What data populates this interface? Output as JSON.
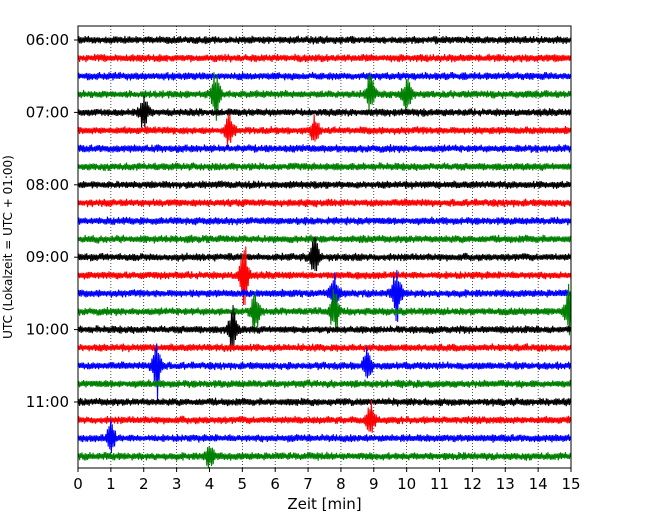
{
  "chart_data": {
    "type": "line",
    "title": "",
    "xlabel": "Zeit  [min]",
    "ylabel": "UTC (Lokalzeit = UTC + 01:00)",
    "xlim": [
      0,
      15
    ],
    "x_ticks": [
      "0",
      "1",
      "2",
      "3",
      "4",
      "5",
      "6",
      "7",
      "8",
      "9",
      "10",
      "11",
      "12",
      "13",
      "14",
      "15"
    ],
    "y_tick_labels": [
      "06:00",
      "07:00",
      "08:00",
      "09:00",
      "10:00",
      "11:00"
    ],
    "trace_count": 24,
    "trace_interval_minutes": 15,
    "first_trace_time": "06:00",
    "trace_colors": [
      "#000000",
      "#ff0000",
      "#0000ff",
      "#008000"
    ],
    "grid": {
      "x": true,
      "y": false,
      "style": "dotted"
    },
    "legend": "none",
    "events": [
      {
        "trace": 3,
        "minute": 4.2,
        "amplitude": 2.0
      },
      {
        "trace": 3,
        "minute": 8.9,
        "amplitude": 1.6
      },
      {
        "trace": 3,
        "minute": 10.0,
        "amplitude": 1.4
      },
      {
        "trace": 4,
        "minute": 2.0,
        "amplitude": 1.4
      },
      {
        "trace": 5,
        "minute": 4.6,
        "amplitude": 1.5
      },
      {
        "trace": 5,
        "minute": 7.2,
        "amplitude": 1.2
      },
      {
        "trace": 12,
        "minute": 7.2,
        "amplitude": 1.6
      },
      {
        "trace": 13,
        "minute": 5.05,
        "amplitude": 3.0
      },
      {
        "trace": 14,
        "minute": 7.8,
        "amplitude": 1.5
      },
      {
        "trace": 14,
        "minute": 9.7,
        "amplitude": 2.0
      },
      {
        "trace": 15,
        "minute": 5.4,
        "amplitude": 1.6
      },
      {
        "trace": 15,
        "minute": 7.8,
        "amplitude": 1.8
      },
      {
        "trace": 15,
        "minute": 14.95,
        "amplitude": 2.2
      },
      {
        "trace": 16,
        "minute": 4.7,
        "amplitude": 1.8
      },
      {
        "trace": 18,
        "minute": 2.4,
        "amplitude": 2.4
      },
      {
        "trace": 18,
        "minute": 8.8,
        "amplitude": 1.2
      },
      {
        "trace": 21,
        "minute": 8.9,
        "amplitude": 1.2
      },
      {
        "trace": 22,
        "minute": 1.0,
        "amplitude": 1.2
      },
      {
        "trace": 23,
        "minute": 4.0,
        "amplitude": 1.0
      }
    ]
  }
}
